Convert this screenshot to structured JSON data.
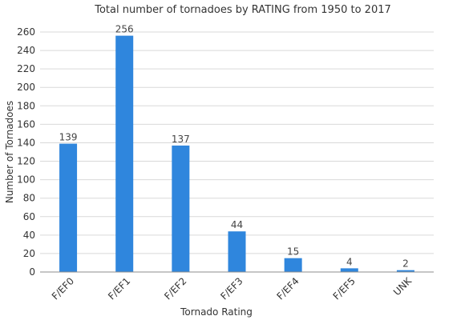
{
  "chart_data": {
    "type": "bar",
    "title": "Total number of tornadoes by RATING from 1950 to 2017",
    "xlabel": "Tornado Rating",
    "ylabel": "Number of Tornadoes",
    "categories": [
      "F/EF0",
      "F/EF1",
      "F/EF2",
      "F/EF3",
      "F/EF4",
      "F/EF5",
      "UNK"
    ],
    "values": [
      139,
      256,
      137,
      44,
      15,
      4,
      2
    ],
    "ylim": [
      0,
      260
    ],
    "yticks": [
      0,
      20,
      40,
      60,
      80,
      100,
      120,
      140,
      160,
      180,
      200,
      220,
      240,
      260
    ],
    "grid": true,
    "bar_color": "#2f86dd"
  }
}
